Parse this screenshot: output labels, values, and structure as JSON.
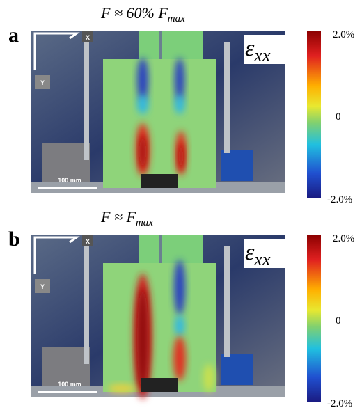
{
  "panels": [
    {
      "label": "a",
      "title": {
        "main": "F ≈ 60% F",
        "sub": "max"
      },
      "strain": {
        "main": "ε",
        "sub": "xx"
      },
      "colorbar": {
        "top": "2.0%",
        "middle": "0",
        "bottom": "-2.0%"
      },
      "axes": {
        "x": "X",
        "y": "Y"
      },
      "scale_bar": "100 mm"
    },
    {
      "label": "b",
      "title": {
        "main": "F ≈ F",
        "sub": "max"
      },
      "strain": {
        "main": "ε",
        "sub": "xx"
      },
      "colorbar": {
        "top": "2.0%",
        "middle": "0",
        "bottom": "-2.0%"
      },
      "axes": {
        "x": "X",
        "y": "Y"
      },
      "scale_bar": "100 mm"
    }
  ]
}
